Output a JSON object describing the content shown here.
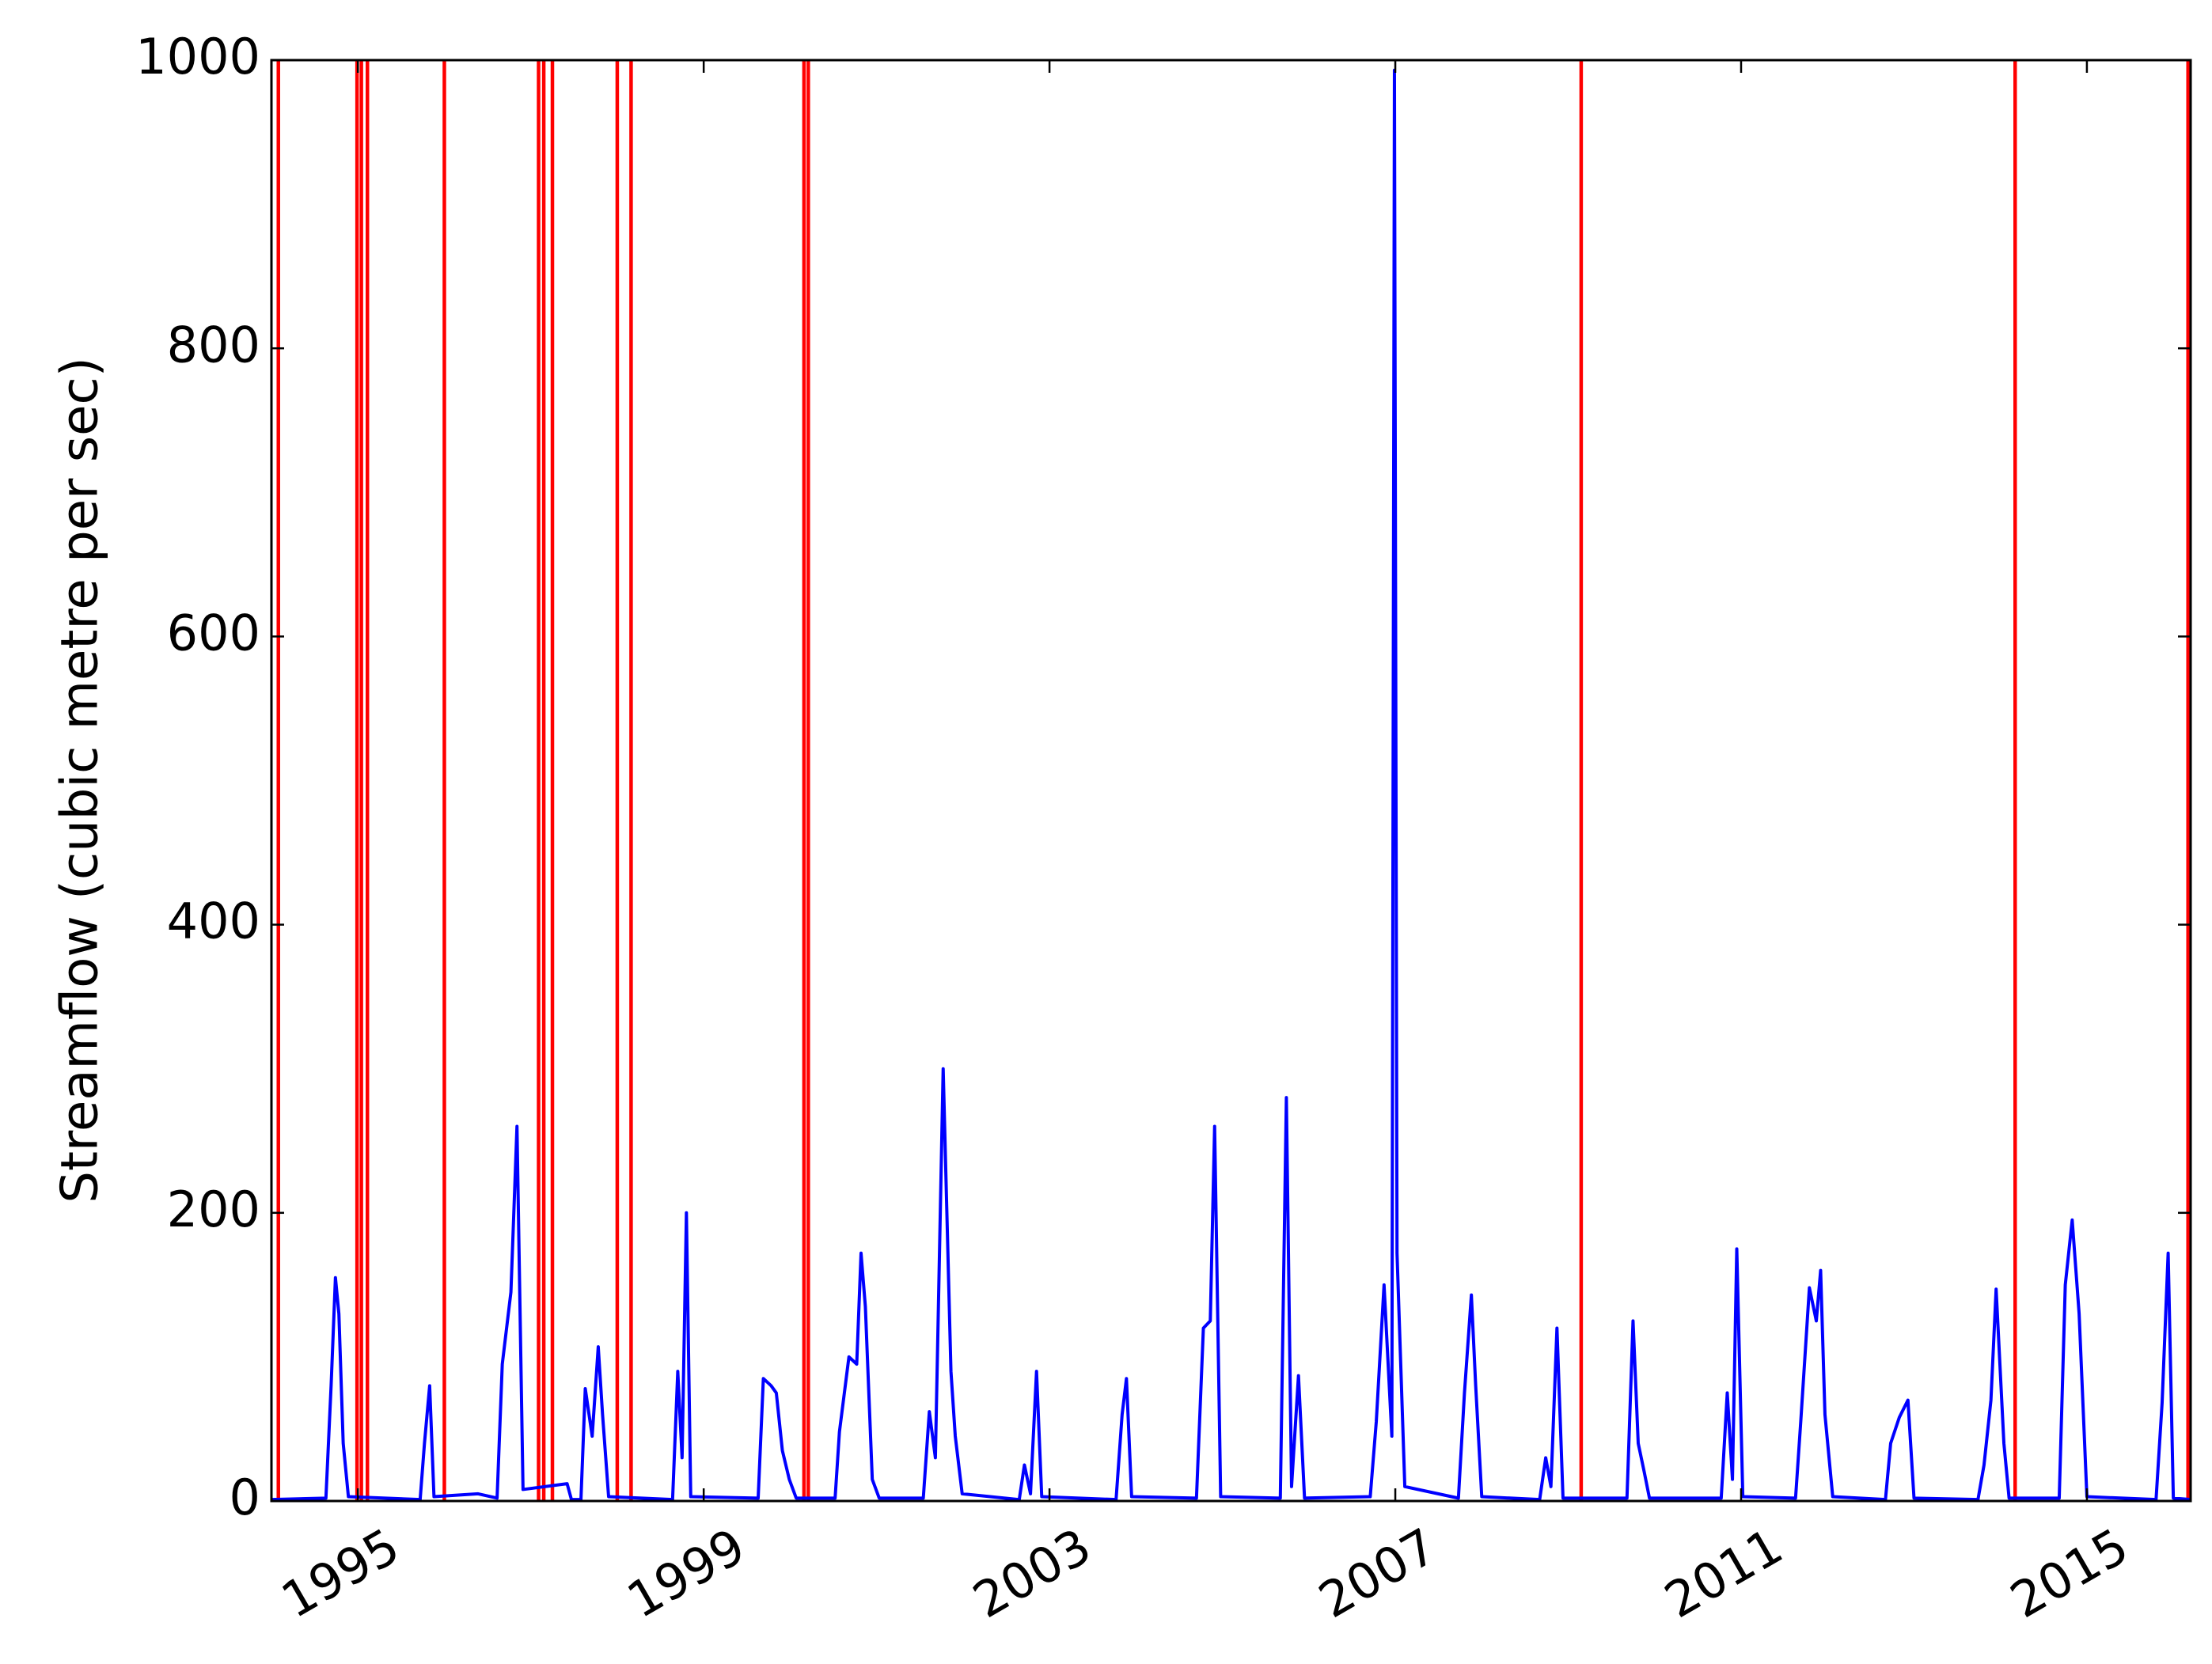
{
  "chart_data": {
    "type": "line",
    "ylabel": "Streamflow (cubic metre per sec)",
    "color": "#0000ff",
    "xlim": [
      1994.0,
      2016.2
    ],
    "ylim": [
      0,
      1000
    ],
    "xticks": [
      1995,
      1999,
      2003,
      2007,
      2011,
      2015
    ],
    "yticks": [
      0,
      200,
      400,
      600,
      800,
      1000
    ],
    "x": [
      1994.0,
      1994.63,
      1994.69,
      1994.74,
      1994.78,
      1994.83,
      1994.89,
      1995.72,
      1995.77,
      1995.83,
      1995.88,
      1996.39,
      1996.61,
      1996.67,
      1996.77,
      1996.84,
      1996.91,
      1997.42,
      1997.47,
      1997.58,
      1997.63,
      1997.71,
      1997.78,
      1997.83,
      1997.9,
      1998.64,
      1998.7,
      1998.75,
      1998.8,
      1998.85,
      1999.63,
      1999.69,
      1999.78,
      1999.84,
      1999.91,
      1999.99,
      2000.07,
      2000.52,
      2000.57,
      2000.68,
      2000.77,
      2000.82,
      2000.87,
      2000.95,
      2001.03,
      2001.54,
      2001.61,
      2001.68,
      2001.77,
      2001.86,
      2001.91,
      2001.99,
      2002.65,
      2002.71,
      2002.78,
      2002.85,
      2002.91,
      2003.77,
      2003.84,
      2003.89,
      2003.95,
      2004.7,
      2004.78,
      2004.86,
      2004.91,
      2004.98,
      2005.67,
      2005.74,
      2005.8,
      2005.88,
      2005.95,
      2006.71,
      2006.78,
      2006.87,
      2006.96,
      2006.99,
      2007.02,
      2007.11,
      2007.73,
      2007.8,
      2007.88,
      2007.93,
      2008.0,
      2008.67,
      2008.74,
      2008.8,
      2008.87,
      2008.94,
      2009.68,
      2009.75,
      2009.81,
      2009.88,
      2009.94,
      2010.77,
      2010.84,
      2010.9,
      2010.95,
      2011.02,
      2011.63,
      2011.69,
      2011.79,
      2011.87,
      2011.92,
      2011.97,
      2012.06,
      2012.67,
      2012.73,
      2012.83,
      2012.93,
      2013.0,
      2013.74,
      2013.81,
      2013.89,
      2013.95,
      2014.04,
      2014.1,
      2014.68,
      2014.75,
      2014.83,
      2014.91,
      2015.0,
      2015.8,
      2015.87,
      2015.94,
      2016.0,
      2016.2
    ],
    "values": [
      1,
      2,
      80,
      155,
      130,
      40,
      3,
      1,
      40,
      80,
      3,
      5,
      2,
      95,
      145,
      260,
      8,
      12,
      1,
      1,
      78,
      45,
      107,
      60,
      3,
      1,
      90,
      30,
      200,
      3,
      2,
      85,
      80,
      75,
      35,
      15,
      2,
      2,
      48,
      100,
      95,
      172,
      135,
      15,
      2,
      2,
      62,
      30,
      300,
      90,
      45,
      5,
      1,
      25,
      5,
      90,
      3,
      1,
      60,
      85,
      3,
      2,
      120,
      125,
      260,
      3,
      2,
      280,
      10,
      87,
      2,
      3,
      55,
      150,
      45,
      993,
      172,
      10,
      2,
      75,
      143,
      80,
      3,
      1,
      30,
      10,
      120,
      2,
      2,
      125,
      40,
      20,
      2,
      2,
      75,
      15,
      175,
      3,
      2,
      55,
      148,
      125,
      160,
      60,
      3,
      1,
      40,
      58,
      70,
      2,
      1,
      25,
      70,
      147,
      40,
      2,
      2,
      150,
      195,
      130,
      3,
      1,
      68,
      172,
      2,
      1
    ],
    "vlines": {
      "color": "#ff0000",
      "x": [
        1994.08,
        1994.99,
        1995.04,
        1995.11,
        1996.0,
        1997.09,
        1997.15,
        1997.25,
        1998.0,
        1998.16,
        2000.16,
        2000.21,
        2009.15,
        2014.17,
        2016.17
      ]
    }
  }
}
